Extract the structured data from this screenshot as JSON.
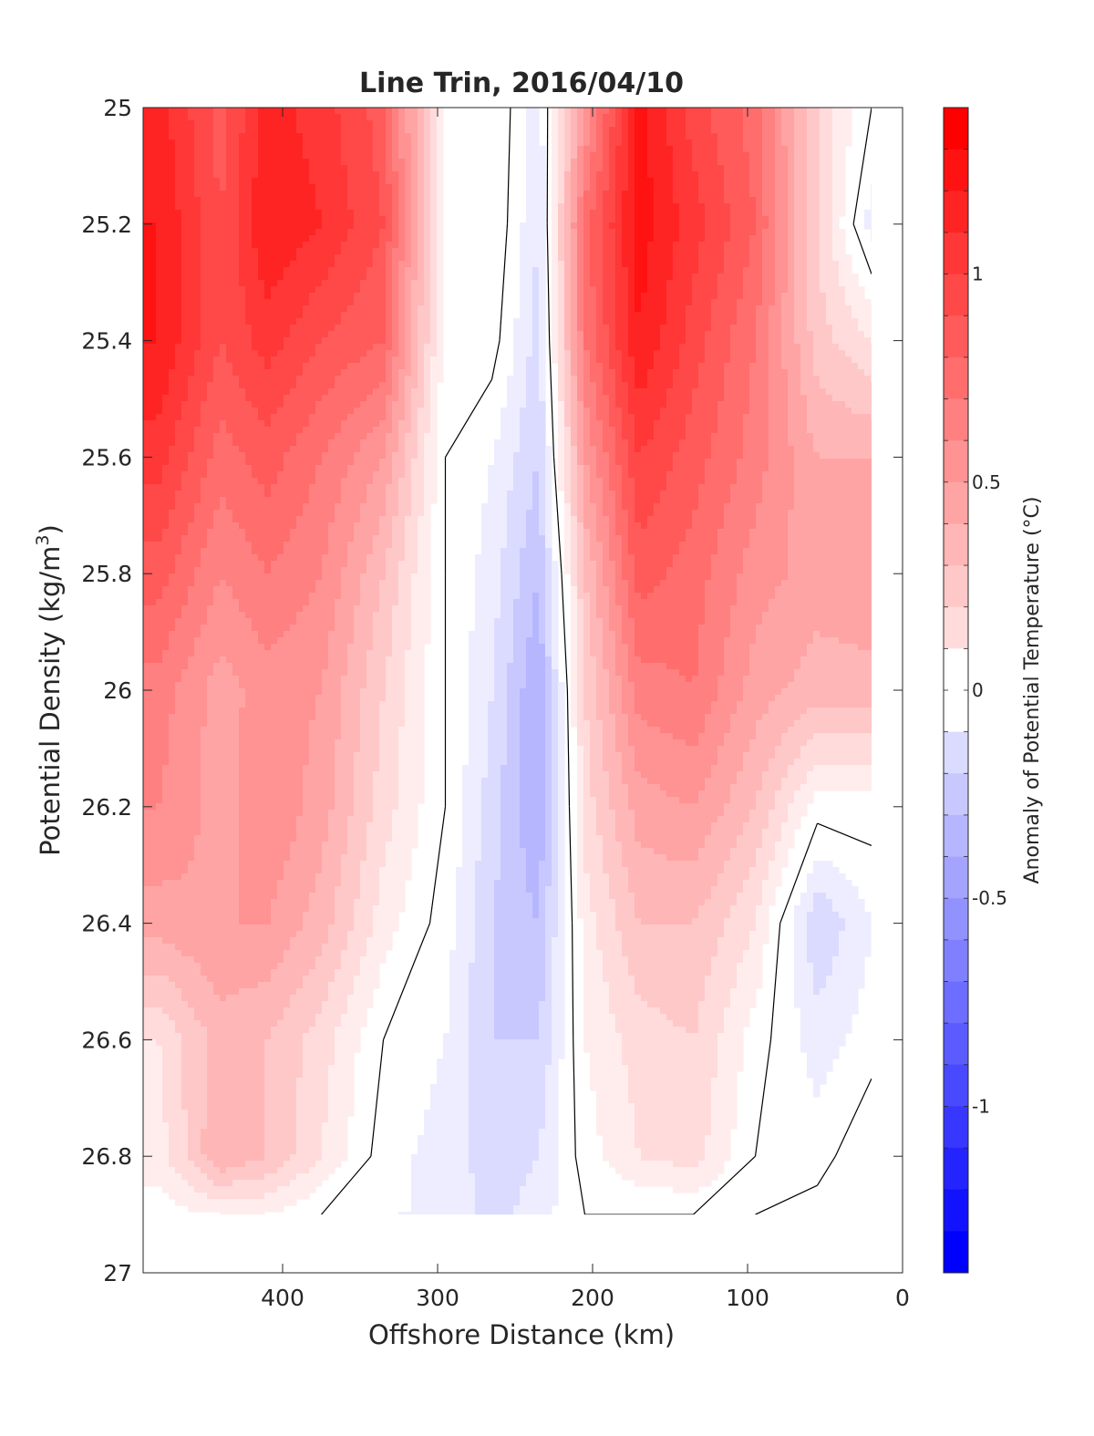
{
  "chart_data": {
    "type": "heatmap",
    "subtype": "filled-contour",
    "title": "Line Trin, 2016/04/10",
    "xlabel": "Offshore Distance (km)",
    "ylabel_main": "Potential Density (kg/m",
    "ylabel_sup": "3",
    "ylabel_close": ")",
    "xlim": [
      490,
      0
    ],
    "ylim": [
      27,
      25
    ],
    "x_reversed": true,
    "y_reversed": true,
    "x_ticks": [
      "400",
      "300",
      "200",
      "100",
      "0"
    ],
    "x_tick_values": [
      400,
      300,
      200,
      100,
      0
    ],
    "y_ticks": [
      "25",
      "25.2",
      "25.4",
      "25.6",
      "25.8",
      "26",
      "26.2",
      "26.4",
      "26.6",
      "26.8",
      "27"
    ],
    "y_tick_values": [
      25,
      25.2,
      25.4,
      25.6,
      25.8,
      26,
      26.2,
      26.4,
      26.6,
      26.8,
      27
    ],
    "colorbar": {
      "label": "Anomaly of Potential Temperature (°C)",
      "range": [
        -1.4,
        1.4
      ],
      "step": 0.1,
      "ticks": [
        "1",
        "0.5",
        "0",
        "-0.5",
        "-1"
      ],
      "tick_values": [
        1,
        0.5,
        0,
        -0.5,
        -1
      ],
      "colormap": "blue-white-red",
      "low_color": "#0000ff",
      "high_color": "#ff0000"
    },
    "grid": false,
    "field": {
      "x": [
        480,
        440,
        410,
        375,
        335,
        295,
        265,
        235,
        205,
        170,
        135,
        95,
        55,
        20
      ],
      "y": [
        25.0,
        25.2,
        25.4,
        25.6,
        25.8,
        26.0,
        26.2,
        26.4,
        26.6,
        26.8,
        26.9
      ],
      "z": [
        [
          1.25,
          0.95,
          1.25,
          1.15,
          0.95,
          0.05,
          0.1,
          -0.15,
          0.6,
          1.35,
          1.05,
          0.85,
          0.3,
          0.0
        ],
        [
          1.3,
          1.0,
          1.3,
          1.2,
          1.0,
          0.05,
          0.1,
          -0.2,
          0.85,
          1.35,
          1.15,
          0.9,
          0.3,
          -0.15
        ],
        [
          1.3,
          1.0,
          1.15,
          1.0,
          0.9,
          0.05,
          0.05,
          -0.25,
          0.8,
          1.3,
          1.05,
          0.8,
          0.35,
          0.2
        ],
        [
          1.15,
          0.85,
          0.95,
          0.8,
          0.6,
          0.0,
          -0.1,
          -0.3,
          0.6,
          1.1,
          0.95,
          0.75,
          0.5,
          0.5
        ],
        [
          0.95,
          0.7,
          0.8,
          0.7,
          0.4,
          0.0,
          -0.15,
          -0.4,
          0.4,
          0.95,
          0.85,
          0.65,
          0.55,
          0.6
        ],
        [
          0.75,
          0.55,
          0.65,
          0.6,
          0.3,
          0.0,
          -0.2,
          -0.5,
          0.3,
          0.75,
          0.8,
          0.55,
          0.45,
          0.45
        ],
        [
          0.7,
          0.55,
          0.7,
          0.55,
          0.25,
          0.0,
          -0.25,
          -0.5,
          0.25,
          0.55,
          0.6,
          0.4,
          0.05,
          0.05
        ],
        [
          0.55,
          0.6,
          0.6,
          0.45,
          0.15,
          -0.05,
          -0.3,
          -0.4,
          0.15,
          0.4,
          0.4,
          0.2,
          -0.3,
          -0.1
        ],
        [
          0.2,
          0.45,
          0.4,
          0.25,
          0.0,
          -0.1,
          -0.3,
          -0.3,
          0.1,
          0.25,
          0.3,
          0.05,
          -0.15,
          -0.05
        ],
        [
          0.15,
          0.5,
          0.4,
          0.2,
          -0.05,
          -0.15,
          -0.25,
          -0.2,
          0.05,
          0.2,
          0.25,
          0.0,
          -0.05,
          0.1
        ],
        [
          0.05,
          0.1,
          0.1,
          0.0,
          -0.1,
          -0.1,
          -0.25,
          -0.15,
          0.0,
          0.0,
          0.0,
          0.0,
          0.05,
          0.05
        ]
      ]
    }
  }
}
